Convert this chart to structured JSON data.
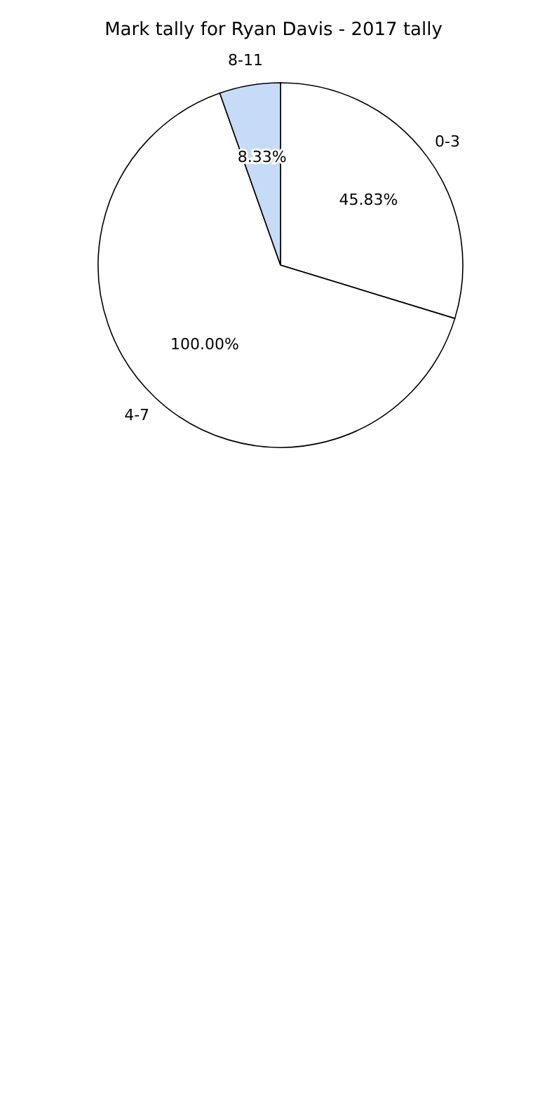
{
  "chart_data": {
    "type": "pie",
    "title": "Mark tally for Ryan Davis - 2017 tally",
    "categories": [
      "0-3",
      "4-7",
      "8-11"
    ],
    "values": [
      45.83,
      100.0,
      8.33
    ],
    "value_labels": [
      "45.83%",
      "100.00%",
      "8.33%"
    ],
    "colors": [
      "#ffffff",
      "#ffffff",
      "#c6dbf7"
    ],
    "legend": false
  }
}
